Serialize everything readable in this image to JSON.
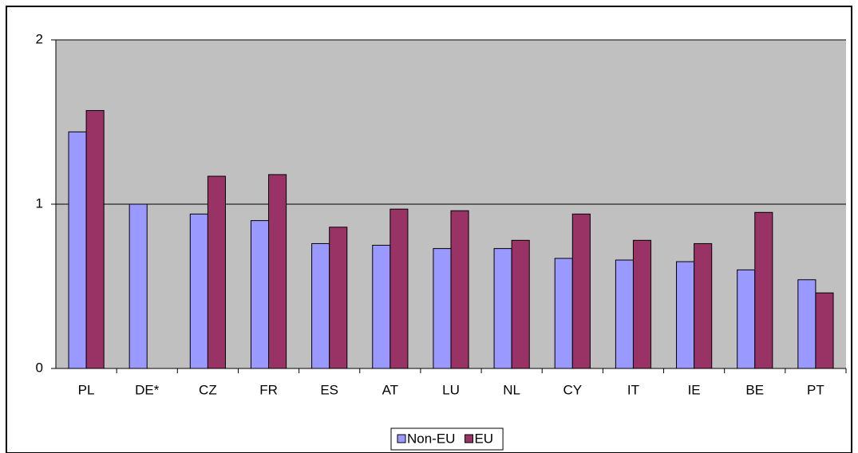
{
  "chart_data": {
    "type": "bar",
    "categories": [
      "PL",
      "DE*",
      "CZ",
      "FR",
      "ES",
      "AT",
      "LU",
      "NL",
      "CY",
      "IT",
      "IE",
      "BE",
      "PT"
    ],
    "series": [
      {
        "name": "Non-EU",
        "color": "#9999ff",
        "values": [
          1.44,
          1.0,
          0.94,
          0.9,
          0.76,
          0.75,
          0.73,
          0.73,
          0.67,
          0.66,
          0.65,
          0.6,
          0.54
        ]
      },
      {
        "name": "EU",
        "color": "#993366",
        "values": [
          1.57,
          null,
          1.17,
          1.18,
          0.86,
          0.97,
          0.96,
          0.78,
          0.94,
          0.78,
          0.76,
          0.95,
          0.46
        ]
      }
    ],
    "ylim": [
      0,
      2
    ],
    "yticks": [
      0,
      1,
      2
    ],
    "grid": true,
    "legend": "bottom"
  }
}
